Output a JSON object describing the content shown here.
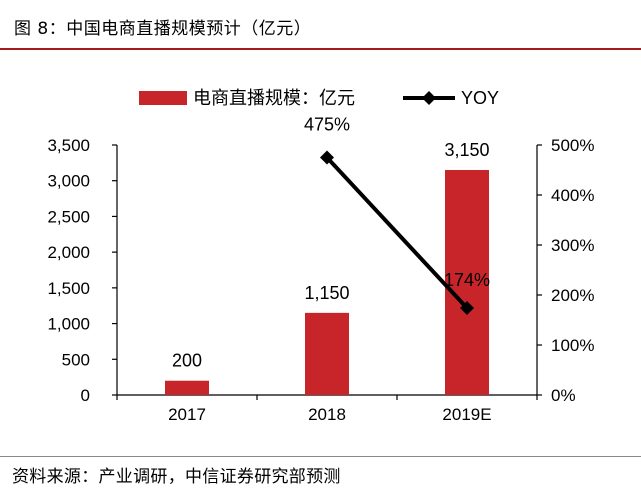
{
  "figure": {
    "title": "图 8：中国电商直播规模预计（亿元）",
    "source": "资料来源：产业调研，中信证券研究部预测"
  },
  "chart_data": {
    "type": "bar+line",
    "categories": [
      "2017",
      "2018",
      "2019E"
    ],
    "bar_series": {
      "name": "电商直播规模：亿元",
      "values": [
        200,
        1150,
        3150
      ],
      "labels": [
        "200",
        "1,150",
        "3,150"
      ],
      "color": "#c8252b"
    },
    "line_series": {
      "name": "YOY",
      "x": [
        "2018",
        "2019E"
      ],
      "values": [
        475,
        174
      ],
      "labels": [
        "475%",
        "174%"
      ],
      "color": "#000000"
    },
    "y_left": {
      "min": 0,
      "max": 3500,
      "ticks": [
        0,
        500,
        1000,
        1500,
        2000,
        2500,
        3000,
        3500
      ],
      "tick_labels": [
        "0",
        "500",
        "1,000",
        "1,500",
        "2,000",
        "2,500",
        "3,000",
        "3,500"
      ]
    },
    "y_right": {
      "min": 0,
      "max": 500,
      "ticks": [
        0,
        100,
        200,
        300,
        400,
        500
      ],
      "tick_labels": [
        "0%",
        "100%",
        "200%",
        "300%",
        "400%",
        "500%"
      ]
    },
    "legend_position": "top",
    "grid": false
  }
}
